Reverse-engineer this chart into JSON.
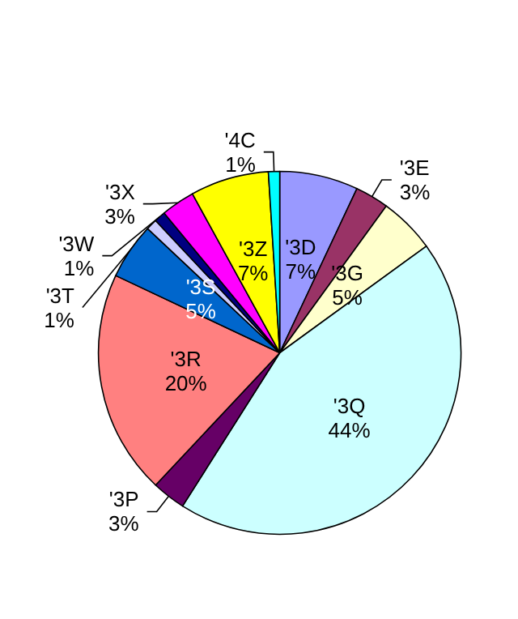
{
  "chart_data": {
    "type": "pie",
    "categories": [
      "'3D",
      "'3E",
      "'3G",
      "'3Q",
      "'3P",
      "'3R",
      "'3S",
      "'3T",
      "'3W",
      "'3X",
      "'3Z",
      "'4C"
    ],
    "values": [
      7,
      3,
      5,
      44,
      3,
      20,
      5,
      1,
      1,
      3,
      7,
      1
    ],
    "value_labels": [
      "7%",
      "3%",
      "5%",
      "44%",
      "3%",
      "20%",
      "5%",
      "1%",
      "1%",
      "3%",
      "7%",
      "1%"
    ],
    "colors": [
      "#9999ff",
      "#993366",
      "#ffffcc",
      "#ccffff",
      "#660066",
      "#ff8080",
      "#0066cc",
      "#ccccff",
      "#000080",
      "#ff00ff",
      "#ffff00",
      "#00ffff"
    ],
    "legend": false
  }
}
